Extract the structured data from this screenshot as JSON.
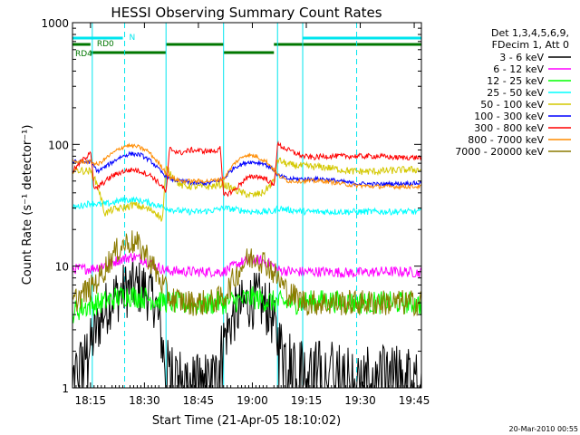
{
  "chart_data": {
    "type": "line",
    "title": "HESSI Observing Summary Count Rates",
    "xlabel": "Start Time (21-Apr-05 18:10:02)",
    "ylabel": "Count Rate (s⁻¹ detector⁻¹)",
    "x_unit": "minutes after 18:10:02",
    "xlim": [
      0,
      97
    ],
    "ylim": [
      1,
      1000
    ],
    "yscale": "log",
    "x_ticks": [
      {
        "t": 5,
        "label": "18:15"
      },
      {
        "t": 20,
        "label": "18:30"
      },
      {
        "t": 35,
        "label": "18:45"
      },
      {
        "t": 50,
        "label": "19:00"
      },
      {
        "t": 65,
        "label": "19:15"
      },
      {
        "t": 80,
        "label": "19:30"
      },
      {
        "t": 95,
        "label": "19:45"
      }
    ],
    "y_ticks": [
      {
        "v": 1,
        "label": "1"
      },
      {
        "v": 10,
        "label": "10"
      },
      {
        "v": 100,
        "label": "100"
      },
      {
        "v": 1000,
        "label": "1000"
      }
    ],
    "legend_header": [
      "Det 1,3,4,5,6,9,",
      "FDecim 1, Att 0"
    ],
    "legend_position": "right",
    "timestamp": "20-Mar-2010 00:55",
    "flags": [
      {
        "name": "N",
        "color": "#00e5ee",
        "segments": [
          [
            0,
            14
          ],
          [
            64,
            97
          ]
        ]
      },
      {
        "name": "RD0",
        "color": "#007700",
        "segments": [
          [
            0,
            5
          ],
          [
            26,
            42
          ],
          [
            56,
            97
          ]
        ]
      },
      {
        "name": "RD4",
        "color": "#007700",
        "segments": [
          [
            5,
            26
          ],
          [
            42,
            56
          ]
        ]
      }
    ],
    "flag_labels": [
      {
        "text": "N",
        "color": "#00e5ee",
        "t": 15
      },
      {
        "text": "RD0",
        "color": "#007700",
        "t": 6
      },
      {
        "text": "RD4",
        "color": "#007700",
        "t": 0
      }
    ],
    "vlines": [
      {
        "t": 0,
        "color": "#00e5ee",
        "style": "solid"
      },
      {
        "t": 5.5,
        "color": "#00e5ee",
        "style": "solid"
      },
      {
        "t": 14.5,
        "color": "#00e5ee",
        "style": "dashed"
      },
      {
        "t": 26,
        "color": "#00e5ee",
        "style": "solid"
      },
      {
        "t": 42,
        "color": "#00e5ee",
        "style": "solid"
      },
      {
        "t": 57,
        "color": "#00e5ee",
        "style": "solid"
      },
      {
        "t": 64,
        "color": "#00e5ee",
        "style": "solid"
      },
      {
        "t": 79,
        "color": "#00e5ee",
        "style": "dashed"
      }
    ],
    "series": [
      {
        "name": "3 - 6 keV",
        "color": "#000000",
        "points": [
          [
            0,
            1.2
          ],
          [
            5,
            2.2
          ],
          [
            8,
            3.8
          ],
          [
            11,
            5.5
          ],
          [
            14,
            6.2
          ],
          [
            17,
            6.8
          ],
          [
            20,
            6.5
          ],
          [
            23,
            5.2
          ],
          [
            26,
            1.5
          ],
          [
            32,
            1.2
          ],
          [
            34,
            1.1
          ],
          [
            40,
            1.3
          ],
          [
            42,
            2.5
          ],
          [
            45,
            4.0
          ],
          [
            49,
            5.2
          ],
          [
            52,
            5.2
          ],
          [
            55,
            4.2
          ],
          [
            57,
            2.5
          ],
          [
            60,
            1.8
          ],
          [
            65,
            1.4
          ],
          [
            72,
            1.5
          ],
          [
            78,
            1.2
          ],
          [
            85,
            1.3
          ],
          [
            93,
            1.3
          ],
          [
            97,
            1.2
          ]
        ]
      },
      {
        "name": "6 - 12 keV",
        "color": "#ff00ff",
        "points": [
          [
            0,
            9.5
          ],
          [
            5,
            9.5
          ],
          [
            10,
            10.5
          ],
          [
            14,
            11.5
          ],
          [
            17,
            12.0
          ],
          [
            20,
            11.2
          ],
          [
            23,
            10.0
          ],
          [
            26,
            9.2
          ],
          [
            32,
            9.0
          ],
          [
            38,
            9.0
          ],
          [
            42,
            9.0
          ],
          [
            46,
            10.5
          ],
          [
            49,
            11.2
          ],
          [
            52,
            11.2
          ],
          [
            55,
            10.5
          ],
          [
            57,
            9.3
          ],
          [
            62,
            9.0
          ],
          [
            70,
            9.0
          ],
          [
            78,
            8.8
          ],
          [
            85,
            9.0
          ],
          [
            93,
            9.0
          ],
          [
            97,
            8.8
          ]
        ]
      },
      {
        "name": "12 - 25 keV",
        "color": "#00ff00",
        "points": [
          [
            0,
            4.2
          ],
          [
            5,
            4.8
          ],
          [
            8,
            5.0
          ],
          [
            12,
            5.5
          ],
          [
            15,
            5.8
          ],
          [
            20,
            5.5
          ],
          [
            25,
            5.2
          ],
          [
            28,
            5.0
          ],
          [
            34,
            4.8
          ],
          [
            40,
            5.0
          ],
          [
            42,
            5.0
          ],
          [
            46,
            5.2
          ],
          [
            50,
            5.5
          ],
          [
            54,
            5.2
          ],
          [
            58,
            5.0
          ],
          [
            62,
            5.0
          ],
          [
            70,
            5.2
          ],
          [
            78,
            5.0
          ],
          [
            85,
            5.0
          ],
          [
            93,
            5.0
          ],
          [
            97,
            4.8
          ]
        ]
      },
      {
        "name": "25 - 50 keV",
        "color": "#00ffff",
        "points": [
          [
            0,
            30
          ],
          [
            5,
            33
          ],
          [
            8,
            32
          ],
          [
            11,
            33
          ],
          [
            14,
            35
          ],
          [
            17,
            35
          ],
          [
            20,
            34
          ],
          [
            23,
            32
          ],
          [
            26,
            30
          ],
          [
            28,
            29
          ],
          [
            32,
            28
          ],
          [
            36,
            28
          ],
          [
            40,
            29
          ],
          [
            42,
            30
          ],
          [
            46,
            29
          ],
          [
            50,
            28
          ],
          [
            53,
            28
          ],
          [
            56,
            28
          ],
          [
            57,
            30
          ],
          [
            60,
            29
          ],
          [
            65,
            28
          ],
          [
            70,
            28
          ],
          [
            75,
            28
          ],
          [
            78,
            28
          ],
          [
            85,
            28
          ],
          [
            93,
            28
          ],
          [
            97,
            28
          ]
        ]
      },
      {
        "name": "50 - 100 keV",
        "color": "#d4c800",
        "points": [
          [
            0,
            62
          ],
          [
            5,
            60
          ],
          [
            7,
            46
          ],
          [
            9,
            27
          ],
          [
            11,
            29
          ],
          [
            14,
            30
          ],
          [
            17,
            32
          ],
          [
            20,
            30
          ],
          [
            23,
            28
          ],
          [
            25,
            24
          ],
          [
            26,
            64
          ],
          [
            30,
            46
          ],
          [
            34,
            45
          ],
          [
            38,
            45
          ],
          [
            42,
            47
          ],
          [
            44,
            44
          ],
          [
            47,
            40
          ],
          [
            50,
            38
          ],
          [
            53,
            40
          ],
          [
            56,
            50
          ],
          [
            57,
            75
          ],
          [
            60,
            68
          ],
          [
            65,
            66
          ],
          [
            70,
            65
          ],
          [
            78,
            60
          ],
          [
            85,
            60
          ],
          [
            93,
            62
          ],
          [
            97,
            62
          ]
        ]
      },
      {
        "name": "100 - 300 keV",
        "color": "#0000ff",
        "points": [
          [
            0,
            72
          ],
          [
            5,
            72
          ],
          [
            7,
            60
          ],
          [
            10,
            68
          ],
          [
            13,
            78
          ],
          [
            16,
            84
          ],
          [
            19,
            82
          ],
          [
            22,
            72
          ],
          [
            25,
            58
          ],
          [
            27,
            52
          ],
          [
            30,
            50
          ],
          [
            34,
            48
          ],
          [
            38,
            48
          ],
          [
            42,
            52
          ],
          [
            45,
            65
          ],
          [
            49,
            72
          ],
          [
            53,
            70
          ],
          [
            56,
            62
          ],
          [
            57,
            56
          ],
          [
            60,
            52
          ],
          [
            65,
            52
          ],
          [
            70,
            52
          ],
          [
            78,
            48
          ],
          [
            85,
            47
          ],
          [
            93,
            48
          ],
          [
            97,
            48
          ]
        ]
      },
      {
        "name": "300 - 800 keV",
        "color": "#ff0000",
        "points": [
          [
            0,
            60
          ],
          [
            2,
            70
          ],
          [
            4,
            80
          ],
          [
            5,
            90
          ],
          [
            6,
            42
          ],
          [
            8,
            47
          ],
          [
            11,
            55
          ],
          [
            14,
            60
          ],
          [
            17,
            62
          ],
          [
            19,
            60
          ],
          [
            22,
            55
          ],
          [
            25,
            45
          ],
          [
            26,
            40
          ],
          [
            27,
            92
          ],
          [
            30,
            85
          ],
          [
            33,
            90
          ],
          [
            37,
            88
          ],
          [
            40,
            88
          ],
          [
            41,
            98
          ],
          [
            42,
            38
          ],
          [
            45,
            42
          ],
          [
            48,
            52
          ],
          [
            51,
            55
          ],
          [
            54,
            52
          ],
          [
            56,
            45
          ],
          [
            57,
            100
          ],
          [
            60,
            90
          ],
          [
            64,
            80
          ],
          [
            67,
            78
          ],
          [
            70,
            80
          ],
          [
            75,
            80
          ],
          [
            80,
            80
          ],
          [
            85,
            80
          ],
          [
            90,
            78
          ],
          [
            97,
            78
          ]
        ]
      },
      {
        "name": "800 - 7000 keV",
        "color": "#ff8c00",
        "points": [
          [
            0,
            72
          ],
          [
            5,
            72
          ],
          [
            7,
            68
          ],
          [
            10,
            80
          ],
          [
            13,
            92
          ],
          [
            15,
            98
          ],
          [
            18,
            96
          ],
          [
            21,
            88
          ],
          [
            24,
            70
          ],
          [
            27,
            54
          ],
          [
            30,
            50
          ],
          [
            34,
            50
          ],
          [
            38,
            50
          ],
          [
            42,
            52
          ],
          [
            45,
            70
          ],
          [
            48,
            82
          ],
          [
            51,
            80
          ],
          [
            54,
            72
          ],
          [
            56,
            62
          ],
          [
            57,
            56
          ],
          [
            60,
            50
          ],
          [
            65,
            50
          ],
          [
            70,
            50
          ],
          [
            78,
            46
          ],
          [
            85,
            45
          ],
          [
            93,
            45
          ],
          [
            97,
            45
          ]
        ]
      },
      {
        "name": "7000 - 20000 keV",
        "color": "#8b7a00",
        "points": [
          [
            0,
            5
          ],
          [
            3,
            6
          ],
          [
            5,
            6.5
          ],
          [
            8,
            8.5
          ],
          [
            11,
            12
          ],
          [
            14,
            15
          ],
          [
            16,
            16
          ],
          [
            18,
            15
          ],
          [
            21,
            12
          ],
          [
            24,
            8
          ],
          [
            27,
            5.5
          ],
          [
            32,
            5
          ],
          [
            38,
            5
          ],
          [
            42,
            5.5
          ],
          [
            45,
            8
          ],
          [
            48,
            11
          ],
          [
            51,
            12
          ],
          [
            54,
            10.5
          ],
          [
            57,
            8
          ],
          [
            60,
            6
          ],
          [
            65,
            5
          ],
          [
            72,
            5
          ],
          [
            80,
            5
          ],
          [
            88,
            5
          ],
          [
            97,
            5
          ]
        ]
      }
    ]
  }
}
